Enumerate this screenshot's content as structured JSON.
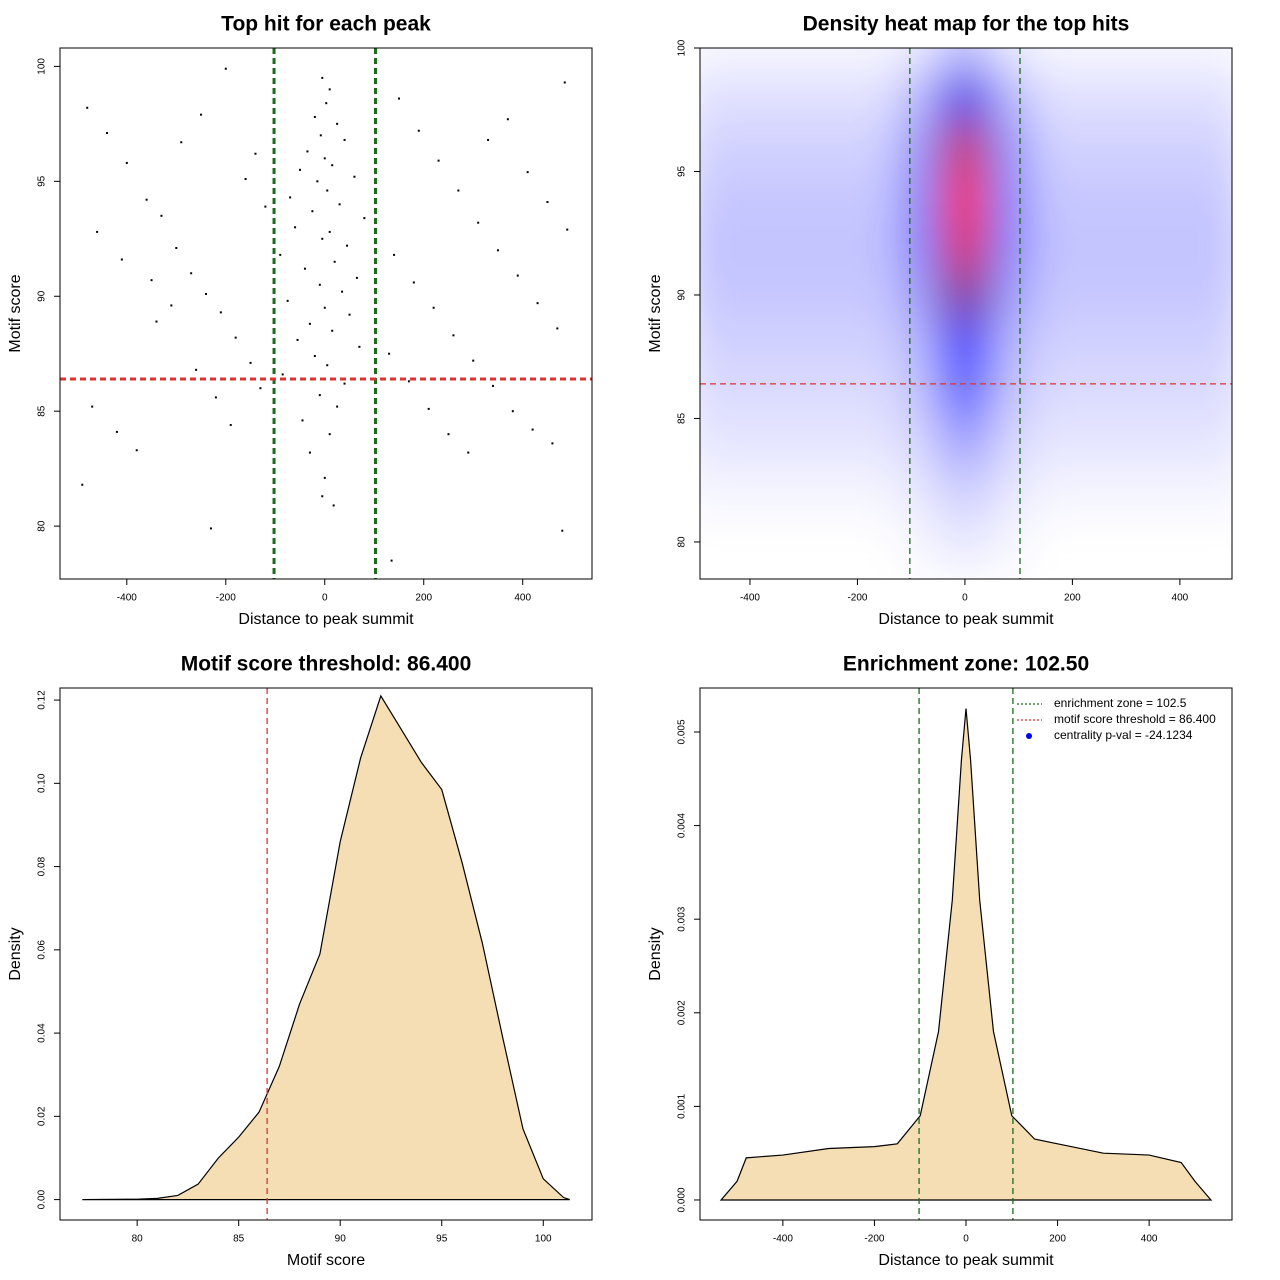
{
  "chart_data": [
    {
      "type": "scatter",
      "title": "Top hit for each peak",
      "x_label": "Distance to peak summit",
      "y_label": "Motif score",
      "xlim": [
        -535,
        540
      ],
      "ylim": [
        77.7,
        100.8
      ],
      "xticks": [
        -400,
        -200,
        0,
        200,
        400
      ],
      "yticks": [
        80,
        85,
        90,
        95,
        100
      ],
      "color": "#000000",
      "x": [
        -5,
        10,
        3,
        -20,
        25,
        -8,
        40,
        -35,
        0,
        15,
        -50,
        60,
        -15,
        5,
        -70,
        30,
        -25,
        80,
        -60,
        10,
        -5,
        45,
        -90,
        20,
        -40,
        65,
        -10,
        35,
        -75,
        0,
        50,
        -30,
        15,
        -55,
        70,
        -20,
        5,
        -85,
        40,
        -10,
        25,
        -45,
        10,
        -30,
        0,
        -5,
        18,
        -480,
        -440,
        -400,
        -360,
        -330,
        -300,
        -270,
        -240,
        -210,
        -180,
        -150,
        -130,
        -470,
        -420,
        -380,
        -340,
        -290,
        -250,
        -200,
        -160,
        -120,
        -460,
        -410,
        -350,
        -310,
        -260,
        -220,
        -190,
        -140,
        -490,
        -230,
        150,
        190,
        230,
        270,
        310,
        350,
        390,
        430,
        470,
        130,
        170,
        210,
        250,
        290,
        330,
        370,
        410,
        450,
        490,
        140,
        180,
        220,
        260,
        300,
        340,
        380,
        420,
        460,
        485,
        480,
        135
      ],
      "y": [
        99.5,
        99,
        98.4,
        97.8,
        97.5,
        97,
        96.8,
        96.3,
        96,
        95.7,
        95.5,
        95.2,
        95,
        94.6,
        94.3,
        94,
        93.7,
        93.4,
        93,
        92.8,
        92.5,
        92.2,
        91.8,
        91.5,
        91.2,
        90.8,
        90.5,
        90.2,
        89.8,
        89.5,
        89.2,
        88.8,
        88.5,
        88.1,
        87.8,
        87.4,
        87,
        86.6,
        86.2,
        85.7,
        85.2,
        84.6,
        84,
        83.2,
        82.1,
        81.3,
        80.9,
        98.2,
        97.1,
        95.8,
        94.2,
        93.5,
        92.1,
        91,
        90.1,
        89.3,
        88.2,
        87.1,
        86,
        85.2,
        84.1,
        83.3,
        88.9,
        96.7,
        97.9,
        99.9,
        95.1,
        93.9,
        92.8,
        91.6,
        90.7,
        89.6,
        86.8,
        85.6,
        84.4,
        96.2,
        81.8,
        79.9,
        98.6,
        97.2,
        95.9,
        94.6,
        93.2,
        92,
        90.9,
        89.7,
        88.6,
        87.5,
        86.3,
        85.1,
        84,
        83.2,
        96.8,
        97.7,
        95.4,
        94.1,
        92.9,
        91.8,
        90.6,
        89.5,
        88.3,
        87.2,
        86.1,
        85,
        84.2,
        83.6,
        99.3,
        79.8,
        78.5
      ],
      "vlines": [
        -102.5,
        102.5
      ],
      "vline_color": "#1a6b1a",
      "hlines": [
        86.4
      ],
      "hline_color": "#dd3333",
      "line_width": 3
    },
    {
      "type": "heatmap",
      "title": "Density heat map for the top hits",
      "x_label": "Distance to peak summit",
      "y_label": "Motif score",
      "xlim": [
        -493,
        497
      ],
      "ylim": [
        78.5,
        100
      ],
      "xticks": [
        -400,
        -200,
        0,
        200,
        400
      ],
      "yticks": [
        80,
        85,
        90,
        95,
        100
      ],
      "x": [
        -480,
        -400,
        -320,
        -240,
        -160,
        -80,
        0,
        80,
        160,
        240,
        320,
        400,
        480
      ],
      "y": [
        80,
        82,
        84,
        86,
        88,
        90,
        92,
        94,
        96,
        98,
        100
      ],
      "z": [
        [
          0,
          0,
          0,
          0,
          0,
          0.02,
          0.05,
          0.02,
          0,
          0,
          0,
          0,
          0
        ],
        [
          0.02,
          0.02,
          0.02,
          0.02,
          0.02,
          0.05,
          0.1,
          0.05,
          0.02,
          0.02,
          0.02,
          0.02,
          0.02
        ],
        [
          0.05,
          0.05,
          0.05,
          0.05,
          0.05,
          0.08,
          0.2,
          0.08,
          0.05,
          0.05,
          0.05,
          0.05,
          0.05
        ],
        [
          0.07,
          0.07,
          0.07,
          0.07,
          0.07,
          0.12,
          0.35,
          0.12,
          0.07,
          0.07,
          0.07,
          0.07,
          0.07
        ],
        [
          0.09,
          0.09,
          0.09,
          0.09,
          0.09,
          0.15,
          0.5,
          0.15,
          0.09,
          0.09,
          0.09,
          0.09,
          0.09
        ],
        [
          0.11,
          0.11,
          0.11,
          0.11,
          0.11,
          0.2,
          0.75,
          0.2,
          0.11,
          0.11,
          0.11,
          0.11,
          0.11
        ],
        [
          0.12,
          0.12,
          0.12,
          0.12,
          0.12,
          0.25,
          0.95,
          0.25,
          0.12,
          0.12,
          0.12,
          0.12,
          0.12
        ],
        [
          0.11,
          0.11,
          0.11,
          0.11,
          0.11,
          0.25,
          1,
          0.25,
          0.11,
          0.11,
          0.11,
          0.11,
          0.11
        ],
        [
          0.09,
          0.09,
          0.09,
          0.09,
          0.09,
          0.22,
          0.9,
          0.22,
          0.09,
          0.09,
          0.09,
          0.09,
          0.09
        ],
        [
          0.06,
          0.06,
          0.06,
          0.06,
          0.06,
          0.15,
          0.55,
          0.15,
          0.06,
          0.06,
          0.06,
          0.06,
          0.06
        ],
        [
          0.02,
          0.02,
          0.02,
          0.02,
          0.02,
          0.05,
          0.15,
          0.05,
          0.02,
          0.02,
          0.02,
          0.02,
          0.02
        ]
      ],
      "colors": [
        "#ffffff",
        "#0000ff",
        "#ff0000"
      ],
      "vlines": [
        -102.5,
        102.5
      ],
      "vline_color": "#1a6b1a",
      "hlines": [
        86.4
      ],
      "hline_color": "#dd3333",
      "line_width": 1.3
    },
    {
      "type": "density",
      "title": "Motif score threshold: 86.400",
      "x_label": "Motif score",
      "y_label": "Density",
      "xlim": [
        76.2,
        102.4
      ],
      "ylim": [
        -0.0049,
        0.1229
      ],
      "xticks": [
        80,
        85,
        90,
        95,
        100
      ],
      "yticks": [
        {
          "value": 0,
          "label": "0.00"
        },
        {
          "value": 0.02,
          "label": "0.02"
        },
        {
          "value": 0.04,
          "label": "0.04"
        },
        {
          "value": 0.06,
          "label": "0.06"
        },
        {
          "value": 0.08,
          "label": "0.08"
        },
        {
          "value": 0.1,
          "label": "0.10"
        },
        {
          "value": 0.12,
          "label": "0.12"
        }
      ],
      "color": "#f5deb3",
      "x": [
        77.3,
        80,
        81,
        82,
        83,
        84,
        85,
        86,
        87,
        88,
        89,
        90,
        91,
        92,
        93,
        94,
        95,
        96,
        97,
        98,
        99,
        100,
        101,
        101.3
      ],
      "values": [
        0,
        0.0001,
        0.0003,
        0.001,
        0.0037,
        0.01,
        0.015,
        0.021,
        0.032,
        0.047,
        0.059,
        0.086,
        0.106,
        0.121,
        0.113,
        0.105,
        0.0985,
        0.081,
        0.0616,
        0.039,
        0.017,
        0.005,
        0.0005,
        0
      ],
      "vlines": [
        86.4
      ],
      "vline_color": "#dd3333",
      "line_width": 1.3
    },
    {
      "type": "density",
      "title": "Enrichment zone: 102.50",
      "x_label": "Distance to peak summit",
      "y_label": "Density",
      "xlim": [
        -581,
        581
      ],
      "ylim": [
        -0.000214,
        0.00547
      ],
      "xticks": [
        -400,
        -200,
        0,
        200,
        400
      ],
      "yticks": [
        {
          "value": 0,
          "label": "0.000"
        },
        {
          "value": 0.001,
          "label": "0.001"
        },
        {
          "value": 0.002,
          "label": "0.002"
        },
        {
          "value": 0.003,
          "label": "0.003"
        },
        {
          "value": 0.004,
          "label": "0.004"
        },
        {
          "value": 0.005,
          "label": "0.005"
        }
      ],
      "color": "#f5deb3",
      "x": [
        -535,
        -500,
        -480,
        -400,
        -300,
        -200,
        -150,
        -100,
        -60,
        -30,
        -10,
        0,
        10,
        30,
        60,
        100,
        150,
        200,
        300,
        400,
        470,
        500,
        535
      ],
      "values": [
        0,
        0.0002,
        0.00045,
        0.00048,
        0.00055,
        0.00057,
        0.0006,
        0.0009,
        0.0018,
        0.0032,
        0.0047,
        0.00525,
        0.0047,
        0.0032,
        0.0018,
        0.0009,
        0.00065,
        0.0006,
        0.0005,
        0.00048,
        0.0004,
        0.0002,
        0
      ],
      "vlines": [
        -102.5,
        102.5
      ],
      "vline_color": "#1a6b1a",
      "line_width": 1.3,
      "legend_position": "topright",
      "legend": [
        {
          "label": "enrichment zone = 102.5",
          "color": "#1a6b1a",
          "style": "dotted"
        },
        {
          "label": "motif score threshold = 86.400",
          "color": "#dd3333",
          "style": "dotted"
        },
        {
          "label": "centrality p-val = -24.1234",
          "color": "#0000ff",
          "style": "point"
        }
      ]
    }
  ]
}
